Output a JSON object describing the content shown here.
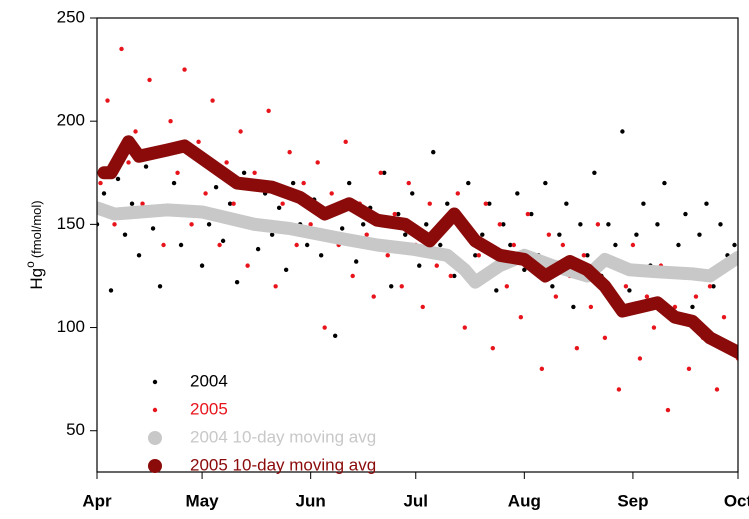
{
  "chart_data": {
    "type": "scatter",
    "y_label": "Hg",
    "y_label_sup": "o",
    "y_label_unit": "(fmol/mol)",
    "xlim": [
      0,
      183
    ],
    "xticks": [
      {
        "value": 0,
        "label": "Apr"
      },
      {
        "value": 30,
        "label": "May"
      },
      {
        "value": 61,
        "label": "Jun"
      },
      {
        "value": 91,
        "label": "Jul"
      },
      {
        "value": 122,
        "label": "Aug"
      },
      {
        "value": 153,
        "label": "Sep"
      },
      {
        "value": 183,
        "label": "Oct"
      }
    ],
    "ylim": [
      30,
      250
    ],
    "yticks": [
      50,
      100,
      150,
      200,
      250
    ],
    "series": [
      {
        "name": "2004",
        "color": "#000000",
        "style": "dot",
        "x": [
          0,
          2,
          4,
          6,
          8,
          10,
          12,
          14,
          16,
          18,
          20,
          22,
          24,
          26,
          28,
          30,
          32,
          34,
          36,
          38,
          40,
          42,
          44,
          46,
          48,
          50,
          52,
          54,
          56,
          58,
          60,
          62,
          64,
          66,
          68,
          70,
          72,
          74,
          76,
          78,
          80,
          82,
          84,
          86,
          88,
          90,
          92,
          94,
          96,
          98,
          100,
          102,
          104,
          106,
          108,
          110,
          112,
          114,
          116,
          118,
          120,
          122,
          124,
          126,
          128,
          130,
          132,
          134,
          136,
          138,
          140,
          142,
          144,
          146,
          148,
          150,
          152,
          154,
          156,
          158,
          160,
          162,
          164,
          166,
          168,
          170,
          172,
          174,
          176,
          178,
          180,
          182
        ],
        "values": [
          150,
          165,
          118,
          172,
          145,
          160,
          135,
          178,
          148,
          120,
          158,
          170,
          140,
          155,
          182,
          130,
          150,
          168,
          142,
          160,
          122,
          175,
          150,
          138,
          165,
          145,
          158,
          128,
          170,
          150,
          140,
          162,
          135,
          155,
          96,
          148,
          170,
          132,
          150,
          158,
          140,
          175,
          120,
          155,
          145,
          165,
          130,
          150,
          185,
          140,
          160,
          125,
          150,
          170,
          135,
          145,
          160,
          118,
          150,
          140,
          165,
          128,
          155,
          135,
          170,
          120,
          145,
          160,
          110,
          150,
          135,
          175,
          125,
          150,
          140,
          195,
          118,
          145,
          160,
          130,
          150,
          170,
          125,
          140,
          155,
          110,
          145,
          160,
          120,
          150,
          135,
          140
        ]
      },
      {
        "name": "2005",
        "color": "#e8141c",
        "style": "dot",
        "x": [
          1,
          3,
          5,
          7,
          9,
          11,
          13,
          15,
          17,
          19,
          21,
          23,
          25,
          27,
          29,
          31,
          33,
          35,
          37,
          39,
          41,
          43,
          45,
          47,
          49,
          51,
          53,
          55,
          57,
          59,
          61,
          63,
          65,
          67,
          69,
          71,
          73,
          75,
          77,
          79,
          81,
          83,
          85,
          87,
          89,
          91,
          93,
          95,
          97,
          99,
          101,
          103,
          105,
          107,
          109,
          111,
          113,
          115,
          117,
          119,
          121,
          123,
          125,
          127,
          129,
          131,
          133,
          135,
          137,
          139,
          141,
          143,
          145,
          147,
          149,
          151,
          153,
          155,
          157,
          159,
          161,
          163,
          165,
          167,
          169,
          171,
          173,
          175,
          177,
          179,
          181,
          183
        ],
        "values": [
          170,
          210,
          150,
          235,
          180,
          195,
          160,
          220,
          185,
          140,
          200,
          175,
          225,
          150,
          190,
          165,
          210,
          140,
          180,
          160,
          195,
          130,
          175,
          150,
          205,
          120,
          160,
          185,
          140,
          170,
          150,
          180,
          100,
          165,
          140,
          190,
          125,
          160,
          145,
          115,
          175,
          135,
          155,
          120,
          170,
          140,
          110,
          160,
          130,
          150,
          125,
          165,
          100,
          145,
          135,
          160,
          90,
          150,
          120,
          140,
          105,
          155,
          130,
          80,
          145,
          115,
          140,
          125,
          90,
          135,
          110,
          150,
          95,
          130,
          70,
          120,
          140,
          85,
          115,
          100,
          130,
          60,
          110,
          125,
          80,
          115,
          95,
          120,
          70,
          105,
          90,
          85
        ]
      },
      {
        "name": "2004 10-day moving avg",
        "color": "#c8c8c8",
        "style": "avg",
        "x": [
          0,
          5,
          20,
          30,
          45,
          55,
          70,
          80,
          90,
          100,
          105,
          108,
          115,
          122,
          130,
          140,
          145,
          152,
          160,
          170,
          175,
          183
        ],
        "values": [
          158,
          155,
          157,
          156,
          150,
          148,
          143,
          140,
          138,
          135,
          128,
          122,
          130,
          135,
          130,
          125,
          133,
          128,
          127,
          126,
          125,
          134
        ]
      },
      {
        "name": "2005 10-day moving avg",
        "color": "#8b0a0a",
        "style": "avg",
        "x": [
          2,
          4,
          9,
          12,
          20,
          25,
          30,
          40,
          50,
          58,
          65,
          72,
          80,
          88,
          95,
          102,
          108,
          115,
          122,
          128,
          135,
          140,
          145,
          150,
          155,
          160,
          165,
          170,
          175,
          183
        ],
        "values": [
          175,
          175,
          190,
          183,
          186,
          188,
          182,
          170,
          168,
          163,
          155,
          160,
          152,
          150,
          142,
          155,
          142,
          135,
          133,
          125,
          132,
          128,
          120,
          108,
          110,
          112,
          105,
          103,
          95,
          88
        ]
      }
    ]
  }
}
